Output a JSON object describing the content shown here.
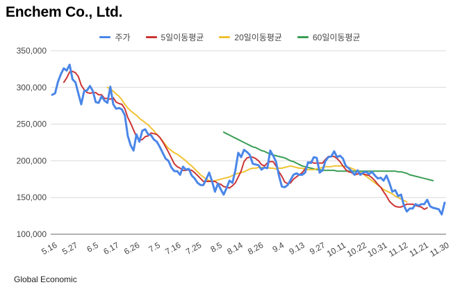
{
  "header": {
    "title": "Enchem Co., Ltd."
  },
  "footer": {
    "source": "Global Economic"
  },
  "chart_data": {
    "type": "line",
    "title": "Enchem Co., Ltd.",
    "xlabel": "",
    "ylabel": "",
    "ylim": [
      100000,
      350000
    ],
    "yticks": [
      100000,
      150000,
      200000,
      250000,
      300000,
      350000
    ],
    "ytick_labels": [
      "100,000",
      "150,000",
      "200,000",
      "250,000",
      "300,000",
      "350,000"
    ],
    "xtick_labels": [
      "5.16",
      "5.27",
      "6.5",
      "6.17",
      "6.26",
      "7.5",
      "7.16",
      "7.25",
      "8.5",
      "8.14",
      "8.26",
      "9.4",
      "9.13",
      "9.27",
      "10.11",
      "10.22",
      "10.31",
      "11.12",
      "11.21",
      "11.30"
    ],
    "grid": true,
    "legend_position": "top",
    "series": [
      {
        "name": "주가",
        "color": "#4a86e8",
        "start_index": 0,
        "values": [
          290000,
          292000,
          308000,
          318000,
          326000,
          323000,
          331000,
          311000,
          307000,
          292000,
          277000,
          295000,
          296000,
          302000,
          295000,
          280000,
          279000,
          288000,
          282000,
          279000,
          301000,
          277000,
          271000,
          272000,
          270000,
          262000,
          234000,
          221000,
          214000,
          236000,
          226000,
          241000,
          243000,
          236000,
          235000,
          229000,
          226000,
          219000,
          211000,
          203000,
          200000,
          191000,
          186000,
          186000,
          181000,
          192000,
          188000,
          189000,
          180000,
          176000,
          170000,
          167000,
          167000,
          175000,
          184000,
          172000,
          158000,
          169000,
          161000,
          154000,
          163000,
          173000,
          170000,
          187000,
          211000,
          205000,
          215000,
          212000,
          208000,
          196000,
          195000,
          194000,
          188000,
          191000,
          190000,
          214000,
          207000,
          199000,
          180000,
          165000,
          164000,
          167000,
          174000,
          181000,
          183000,
          181000,
          181000,
          184000,
          198000,
          197000,
          205000,
          204000,
          184000,
          187000,
          200000,
          205000,
          206000,
          213000,
          205000,
          207000,
          203000,
          193000,
          190000,
          186000,
          181000,
          187000,
          181000,
          184000,
          185000,
          182000,
          185000,
          180000,
          176000,
          177000,
          173000,
          180000,
          170000,
          158000,
          160000,
          152000,
          154000,
          139000,
          131000,
          135000,
          135000,
          141000,
          139000,
          141000,
          141000,
          147000,
          138000,
          136000,
          135000,
          134000,
          127000,
          143000
        ]
      },
      {
        "name": "5일이동평균",
        "color": "#cc3333",
        "start_index": 4,
        "values": [
          307000,
          313000,
          321000,
          322000,
          320000,
          315000,
          303000,
          297000,
          293000,
          292000,
          293000,
          293000,
          290000,
          290000,
          285000,
          285000,
          284000,
          286000,
          280000,
          278000,
          277000,
          271000,
          259000,
          251000,
          242000,
          233000,
          228000,
          229000,
          233000,
          234000,
          238000,
          237000,
          236000,
          232000,
          226000,
          219000,
          212000,
          204000,
          196000,
          192000,
          190000,
          187000,
          187000,
          188000,
          187000,
          184000,
          180000,
          176000,
          172000,
          172000,
          172000,
          172000,
          172000,
          169000,
          168000,
          165000,
          164000,
          163000,
          166000,
          170000,
          178000,
          186000,
          199000,
          204000,
          205000,
          205000,
          203000,
          200000,
          195000,
          193000,
          197000,
          199000,
          199000,
          193000,
          185000,
          179000,
          171000,
          169000,
          170000,
          175000,
          178000,
          181000,
          184000,
          189000,
          196000,
          199000,
          197000,
          197000,
          197000,
          197000,
          202000,
          206000,
          206000,
          206000,
          203000,
          199000,
          193000,
          188000,
          185000,
          184000,
          181000,
          182000,
          183000,
          182000,
          181000,
          180000,
          177000,
          173000,
          168000,
          164000,
          158000,
          152000,
          145000,
          141000,
          138000,
          137000,
          137000,
          139000,
          141000,
          141000,
          141000,
          139000,
          138000,
          137000,
          134000,
          136000
        ]
      },
      {
        "name": "20일이동평균",
        "color": "#f1c232",
        "start_index": 19,
        "values": [
          300000,
          298000,
          295000,
          291000,
          288000,
          283000,
          277000,
          272000,
          268000,
          265000,
          262000,
          258000,
          255000,
          252000,
          249000,
          245000,
          241000,
          236000,
          232000,
          227000,
          222000,
          217000,
          214000,
          211000,
          209000,
          206000,
          203000,
          200000,
          196000,
          193000,
          189000,
          185000,
          181000,
          178000,
          175000,
          173000,
          172000,
          173000,
          174000,
          175000,
          176000,
          177000,
          178000,
          180000,
          182000,
          183000,
          184000,
          185000,
          187000,
          189000,
          190000,
          190000,
          191000,
          191000,
          191000,
          191000,
          190000,
          190000,
          189000,
          190000,
          190000,
          191000,
          192000,
          193000,
          192000,
          191000,
          190000,
          190000,
          189000,
          188000,
          188000,
          188000,
          189000,
          190000,
          191000,
          192000,
          192000,
          192000,
          193000,
          193000,
          193000,
          193000,
          192000,
          191000,
          190000,
          188000,
          186000,
          184000,
          182000,
          179000,
          176000,
          173000,
          170000,
          167000,
          164000,
          161000,
          159000,
          157000,
          155000,
          152000,
          150000,
          148000,
          146000,
          144000
        ]
      },
      {
        "name": "60일이동평균",
        "color": "#3a9e55",
        "start_index": 59,
        "values": [
          239000,
          237000,
          235000,
          233000,
          231000,
          229000,
          227000,
          225000,
          223000,
          221000,
          219000,
          218000,
          216000,
          214000,
          213000,
          211000,
          209000,
          208000,
          207000,
          206000,
          205000,
          204000,
          202000,
          200000,
          199000,
          197000,
          195000,
          193000,
          192000,
          191000,
          190000,
          189000,
          188000,
          188000,
          187000,
          187000,
          187000,
          187000,
          187000,
          186000,
          186000,
          186000,
          186000,
          186000,
          186000,
          186000,
          186000,
          186000,
          186000,
          186000,
          186000,
          186000,
          186000,
          186000,
          186000,
          186000,
          186000,
          186000,
          186000,
          186000,
          185000,
          185000,
          184000,
          183000,
          181000,
          180000,
          179000,
          178000,
          177000,
          176000,
          175000,
          174000,
          173000
        ]
      }
    ]
  }
}
